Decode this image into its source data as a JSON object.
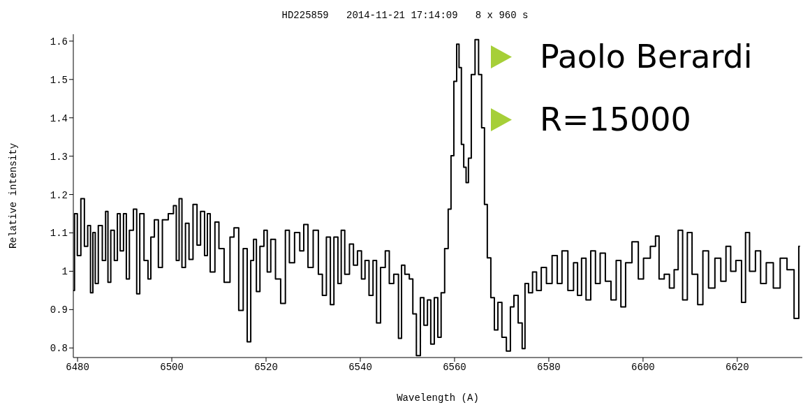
{
  "chart_data": {
    "type": "step",
    "title": "HD225859   2014-11-21 17:14:09   8 x 960 s",
    "xlabel": "Wavelength (A)",
    "ylabel": "Relative intensity",
    "annotations": [
      "Paolo Berardi",
      "R=15000"
    ],
    "xlim": [
      6479.1,
      6633.8
    ],
    "xticks": [
      6480,
      6500,
      6520,
      6540,
      6560,
      6580,
      6600,
      6620
    ],
    "ylim": [
      0.775,
      1.618
    ],
    "yticks": [
      0.8,
      0.9,
      1,
      1.1,
      1.2,
      1.3,
      1.4,
      1.5,
      1.6
    ],
    "grid": false,
    "legend": false,
    "marker": "none",
    "line_style": "solid",
    "series": [
      {
        "color": "#000000",
        "x": [
          6479.1,
          6479.6,
          6480.3,
          6481.1,
          6481.8,
          6482.5,
          6483.0,
          6483.5,
          6484.0,
          6484.8,
          6485.7,
          6486.2,
          6486.7,
          6487.4,
          6488.2,
          6488.7,
          6489.4,
          6490.1,
          6490.6,
          6491.4,
          6492.3,
          6492.8,
          6493.6,
          6494.6,
          6495.3,
          6495.8,
          6496.8,
          6497.5,
          6498.5,
          6500.0,
          6500.7,
          6501.2,
          6501.9,
          6502.4,
          6503.4,
          6503.9,
          6505.1,
          6505.6,
          6506.6,
          6507.3,
          6507.8,
          6508.5,
          6509.8,
          6510.2,
          6512.0,
          6512.7,
          6513.7,
          6514.7,
          6515.6,
          6516.4,
          6517.1,
          6517.6,
          6518.3,
          6519.1,
          6520.0,
          6520.5,
          6521.5,
          6522.5,
          6523.7,
          6524.5,
          6525.4,
          6526.7,
          6527.6,
          6528.4,
          6529.4,
          6530.6,
          6531.6,
          6532.3,
          6533.3,
          6534.0,
          6534.8,
          6535.7,
          6536.2,
          6537.2,
          6538.2,
          6538.9,
          6539.9,
          6540.6,
          6541.4,
          6542.3,
          6543.1,
          6543.8,
          6544.8,
          6545.8,
          6546.5,
          6547.7,
          6548.5,
          6549.0,
          6549.9,
          6550.9,
          6551.4,
          6552.4,
          6553.1,
          6553.9,
          6554.6,
          6555.3,
          6556.1,
          6556.8,
          6557.5,
          6558.3,
          6559.0,
          6559.5,
          6560.2,
          6560.7,
          6561.2,
          6561.7,
          6562.2,
          6562.7,
          6563.2,
          6563.9,
          6564.8,
          6565.4,
          6566.1,
          6566.6,
          6567.3,
          6568.1,
          6568.8,
          6569.6,
          6570.5,
          6571.5,
          6572.2,
          6573.0,
          6574.0,
          6574.7,
          6575.2,
          6576.2,
          6576.9,
          6577.9,
          6578.9,
          6580.1,
          6581.3,
          6582.3,
          6583.3,
          6584.8,
          6585.7,
          6586.5,
          6587.4,
          6588.4,
          6589.4,
          6590.4,
          6591.4,
          6592.6,
          6593.8,
          6594.8,
          6595.8,
          6596.8,
          6598.5,
          6599.5,
          6600.7,
          6602.4,
          6602.9,
          6603.9,
          6605.1,
          6606.1,
          6607.1,
          6607.8,
          6609.0,
          6609.8,
          6611.0,
          6612.2,
          6613.2,
          6614.6,
          6615.9,
          6617.1,
          6618.1,
          6619.1,
          6620.3,
          6621.5,
          6622.0,
          6623.2,
          6624.5,
          6625.4,
          6626.9,
          6628.4,
          6629.8,
          6631.3,
          6632.8,
          6633.3
        ],
        "values": [
          0.95,
          1.15,
          1.041,
          1.189,
          1.065,
          1.119,
          0.944,
          1.101,
          0.968,
          1.119,
          1.028,
          1.156,
          0.971,
          1.107,
          1.028,
          1.15,
          1.053,
          1.15,
          0.98,
          1.107,
          1.162,
          0.941,
          1.15,
          1.028,
          0.98,
          1.089,
          1.134,
          1.01,
          1.134,
          1.15,
          1.171,
          1.028,
          1.189,
          1.01,
          1.125,
          1.031,
          1.174,
          1.068,
          1.156,
          1.041,
          1.15,
          0.998,
          1.128,
          1.059,
          0.971,
          1.089,
          1.113,
          0.898,
          1.059,
          0.816,
          1.028,
          1.083,
          0.947,
          1.065,
          1.107,
          0.998,
          1.083,
          0.98,
          0.916,
          1.107,
          1.022,
          1.101,
          1.053,
          1.122,
          1.01,
          1.107,
          0.992,
          0.937,
          1.089,
          0.913,
          1.089,
          0.968,
          1.107,
          0.992,
          1.071,
          1.016,
          1.053,
          0.98,
          1.028,
          0.937,
          1.028,
          0.865,
          1.01,
          1.053,
          0.968,
          0.992,
          0.825,
          1.016,
          0.992,
          0.98,
          0.889,
          0.78,
          0.931,
          0.859,
          0.925,
          0.81,
          0.931,
          0.828,
          0.944,
          1.059,
          1.162,
          1.301,
          1.495,
          1.592,
          1.531,
          1.331,
          1.271,
          1.231,
          1.295,
          1.513,
          1.604,
          1.513,
          1.374,
          1.174,
          1.035,
          0.931,
          0.847,
          0.919,
          0.828,
          0.792,
          0.907,
          0.937,
          0.865,
          0.798,
          0.968,
          0.944,
          0.998,
          0.95,
          1.01,
          0.968,
          1.041,
          0.968,
          1.053,
          0.95,
          1.022,
          0.937,
          1.034,
          0.925,
          1.053,
          0.968,
          1.047,
          0.974,
          0.925,
          1.028,
          0.907,
          1.022,
          1.077,
          0.98,
          1.034,
          1.065,
          1.092,
          0.98,
          0.992,
          0.956,
          1.004,
          1.107,
          0.925,
          1.101,
          0.992,
          0.913,
          1.053,
          0.956,
          1.034,
          0.974,
          1.065,
          1.0,
          1.028,
          0.919,
          1.101,
          1.0,
          1.053,
          0.968,
          1.022,
          0.956,
          1.034,
          1.004,
          0.877,
          1.065
        ]
      }
    ]
  }
}
